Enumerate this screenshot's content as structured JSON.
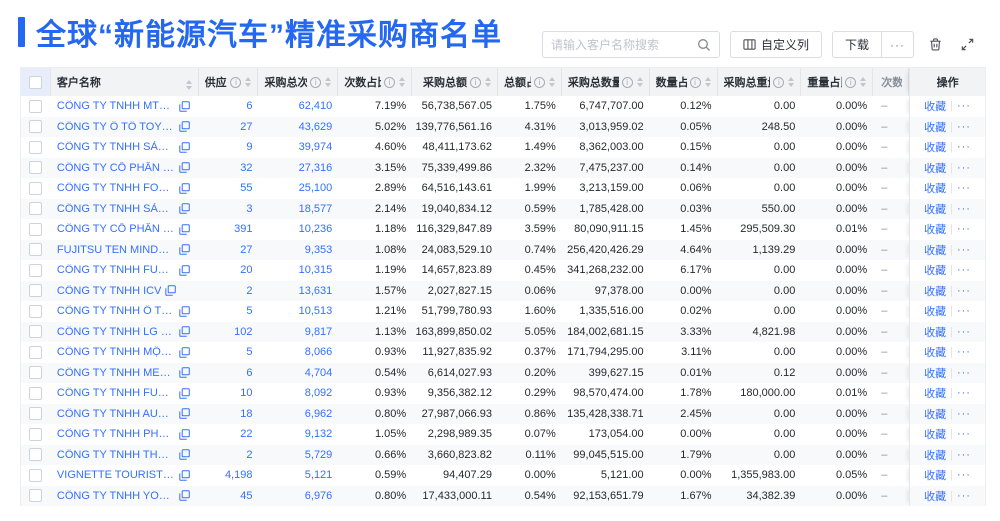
{
  "page": {
    "title": "全球“新能源汽车”精准采购商名单"
  },
  "colors": {
    "accent": "#2468f2",
    "link": "#3370ff",
    "header_bg": "#f2f3f5"
  },
  "toolbar": {
    "search_placeholder": "请输入客户名称搜索",
    "customize_columns": "自定义列",
    "download": "下载",
    "more": "···",
    "icons": {
      "search": "magnifier",
      "customize": "table-columns",
      "trash": "trash-can",
      "fullscreen": "expand-arrows"
    }
  },
  "table": {
    "columns": [
      {
        "key": "name",
        "label": "客户名称",
        "info": false,
        "sort": true,
        "align": "left"
      },
      {
        "key": "supplier",
        "label": "供应商",
        "info": true,
        "sort": true,
        "align": "right"
      },
      {
        "key": "times",
        "label": "采购总次数",
        "info": true,
        "sort": true,
        "align": "right"
      },
      {
        "key": "times_pct",
        "label": "次数占比",
        "info": true,
        "sort": true,
        "align": "right"
      },
      {
        "key": "amount",
        "label": "采购总额",
        "info": true,
        "sort": true,
        "align": "right"
      },
      {
        "key": "amount_pct",
        "label": "总额占比",
        "info": true,
        "sort": true,
        "align": "right"
      },
      {
        "key": "qty",
        "label": "采购总数量",
        "info": true,
        "sort": true,
        "align": "right"
      },
      {
        "key": "qty_pct",
        "label": "数量占比",
        "info": true,
        "sort": true,
        "align": "right"
      },
      {
        "key": "weight",
        "label": "采购总重量",
        "info": true,
        "sort": true,
        "align": "right"
      },
      {
        "key": "weight_pct",
        "label": "重量占比",
        "info": true,
        "sort": true,
        "align": "right"
      },
      {
        "key": "trend",
        "label": "次数趋势",
        "info": false,
        "sort": false,
        "align": "left"
      },
      {
        "key": "action",
        "label": "操作",
        "info": false,
        "sort": false,
        "align": "center"
      }
    ],
    "trend_empty": "–",
    "actions": {
      "favorite": "收藏",
      "more": "···"
    },
    "rows": [
      {
        "name": "CÔNG TY TNHH MTV SẢN XUẤ...",
        "supplier": "6",
        "times": "62,410",
        "times_pct": "7.19%",
        "amount": "56,738,567.05",
        "amount_pct": "1.75%",
        "qty": "6,747,707.00",
        "qty_pct": "0.12%",
        "weight": "0.00",
        "weight_pct": "0.00%"
      },
      {
        "name": "CÔNG TY Ô TÔ TOYOTA VIỆT ...",
        "supplier": "27",
        "times": "43,629",
        "times_pct": "5.02%",
        "amount": "139,776,561.16",
        "amount_pct": "4.31%",
        "qty": "3,013,959.02",
        "qty_pct": "0.05%",
        "weight": "248.50",
        "weight_pct": "0.00%"
      },
      {
        "name": "CÔNG TY TNHH SẢN XUẤT VÀ ...",
        "supplier": "9",
        "times": "39,974",
        "times_pct": "4.60%",
        "amount": "48,411,173.62",
        "amount_pct": "1.49%",
        "qty": "8,362,003.00",
        "qty_pct": "0.15%",
        "weight": "0.00",
        "weight_pct": "0.00%"
      },
      {
        "name": "CÔNG TY CỔ PHẦN SẢN XUẤT...",
        "supplier": "32",
        "times": "27,316",
        "times_pct": "3.15%",
        "amount": "75,339,499.86",
        "amount_pct": "2.32%",
        "qty": "7,475,237.00",
        "qty_pct": "0.14%",
        "weight": "0.00",
        "weight_pct": "0.00%"
      },
      {
        "name": "CÔNG TY TNHH FORD VIỆT NAM",
        "supplier": "55",
        "times": "25,100",
        "times_pct": "2.89%",
        "amount": "64,516,143.61",
        "amount_pct": "1.99%",
        "qty": "3,213,159.00",
        "qty_pct": "0.06%",
        "weight": "0.00",
        "weight_pct": "0.00%"
      },
      {
        "name": "CÔNG TY TNHH SẢN XUẤT VÀ ...",
        "supplier": "3",
        "times": "18,577",
        "times_pct": "2.14%",
        "amount": "19,040,834.12",
        "amount_pct": "0.59%",
        "qty": "1,785,428.00",
        "qty_pct": "0.03%",
        "weight": "550.00",
        "weight_pct": "0.00%"
      },
      {
        "name": "CÔNG TY CỔ PHẦN SẢN XUẤT...",
        "supplier": "391",
        "times": "10,236",
        "times_pct": "1.18%",
        "amount": "116,329,847.89",
        "amount_pct": "3.59%",
        "qty": "80,090,911.15",
        "qty_pct": "1.45%",
        "weight": "295,509.30",
        "weight_pct": "0.01%"
      },
      {
        "name": "FUJITSU TEN MINDA INDIA PVT...",
        "supplier": "27",
        "times": "9,353",
        "times_pct": "1.08%",
        "amount": "24,083,529.10",
        "amount_pct": "0.74%",
        "qty": "256,420,426.29",
        "qty_pct": "4.64%",
        "weight": "1,139.29",
        "weight_pct": "0.00%"
      },
      {
        "name": "CÔNG TY TNHH FURUKAWA A...",
        "supplier": "20",
        "times": "10,315",
        "times_pct": "1.19%",
        "amount": "14,657,823.89",
        "amount_pct": "0.45%",
        "qty": "341,268,232.00",
        "qty_pct": "6.17%",
        "weight": "0.00",
        "weight_pct": "0.00%"
      },
      {
        "name": "CÔNG TY TNHH ICV",
        "supplier": "2",
        "times": "13,631",
        "times_pct": "1.57%",
        "amount": "2,027,827.15",
        "amount_pct": "0.06%",
        "qty": "97,378.00",
        "qty_pct": "0.00%",
        "weight": "0.00",
        "weight_pct": "0.00%"
      },
      {
        "name": "CÔNG TY TNHH Ô TÔ MITSUBI...",
        "supplier": "5",
        "times": "10,513",
        "times_pct": "1.21%",
        "amount": "51,799,780.93",
        "amount_pct": "1.60%",
        "qty": "1,335,516.00",
        "qty_pct": "0.02%",
        "weight": "0.00",
        "weight_pct": "0.00%"
      },
      {
        "name": "CÔNG TY TNHH LG ELECTRON...",
        "supplier": "102",
        "times": "9,817",
        "times_pct": "1.13%",
        "amount": "163,899,850.02",
        "amount_pct": "5.05%",
        "qty": "184,002,681.15",
        "qty_pct": "3.33%",
        "weight": "4,821.98",
        "weight_pct": "0.00%"
      },
      {
        "name": "CÔNG TY TNHH MỘT THÀNH V...",
        "supplier": "5",
        "times": "8,066",
        "times_pct": "0.93%",
        "amount": "11,927,835.92",
        "amount_pct": "0.37%",
        "qty": "171,794,295.00",
        "qty_pct": "3.11%",
        "weight": "0.00",
        "weight_pct": "0.00%"
      },
      {
        "name": "CÔNG TY TNHH MERCEDES–B...",
        "supplier": "6",
        "times": "4,704",
        "times_pct": "0.54%",
        "amount": "6,614,027.93",
        "amount_pct": "0.20%",
        "qty": "399,627.15",
        "qty_pct": "0.01%",
        "weight": "0.12",
        "weight_pct": "0.00%"
      },
      {
        "name": "CÔNG TY TNHH FURUKAWA A...",
        "supplier": "10",
        "times": "8,092",
        "times_pct": "0.93%",
        "amount": "9,356,382.12",
        "amount_pct": "0.29%",
        "qty": "98,570,474.00",
        "qty_pct": "1.78%",
        "weight": "180,000.00",
        "weight_pct": "0.01%"
      },
      {
        "name": "CÔNG TY TNHH AUTEL VIỆT N...",
        "supplier": "18",
        "times": "6,962",
        "times_pct": "0.80%",
        "amount": "27,987,066.93",
        "amount_pct": "0.86%",
        "qty": "135,428,338.71",
        "qty_pct": "2.45%",
        "weight": "0.00",
        "weight_pct": "0.00%"
      },
      {
        "name": "CÔNG TY TNHH PHÂN PHỐI T...",
        "supplier": "22",
        "times": "9,132",
        "times_pct": "1.05%",
        "amount": "2,298,989.35",
        "amount_pct": "0.07%",
        "qty": "173,054.00",
        "qty_pct": "0.00%",
        "weight": "0.00",
        "weight_pct": "0.00%"
      },
      {
        "name": "CÔNG TY TNHH THN AUTOPAR...",
        "supplier": "2",
        "times": "5,729",
        "times_pct": "0.66%",
        "amount": "3,660,823.82",
        "amount_pct": "0.11%",
        "qty": "99,045,515.00",
        "qty_pct": "1.79%",
        "weight": "0.00",
        "weight_pct": "0.00%"
      },
      {
        "name": "VIGNETTE TOURISTIQUE G UNI...",
        "supplier": "4,198",
        "times": "5,121",
        "times_pct": "0.59%",
        "amount": "94,407.29",
        "amount_pct": "0.00%",
        "qty": "5,121.00",
        "qty_pct": "0.00%",
        "weight": "1,355,983.00",
        "weight_pct": "0.05%"
      },
      {
        "name": "CÔNG TY TNHH YOKOWO VIỆT...",
        "supplier": "45",
        "times": "6,976",
        "times_pct": "0.80%",
        "amount": "17,433,000.11",
        "amount_pct": "0.54%",
        "qty": "92,153,651.79",
        "qty_pct": "1.67%",
        "weight": "34,382.39",
        "weight_pct": "0.00%"
      }
    ]
  }
}
